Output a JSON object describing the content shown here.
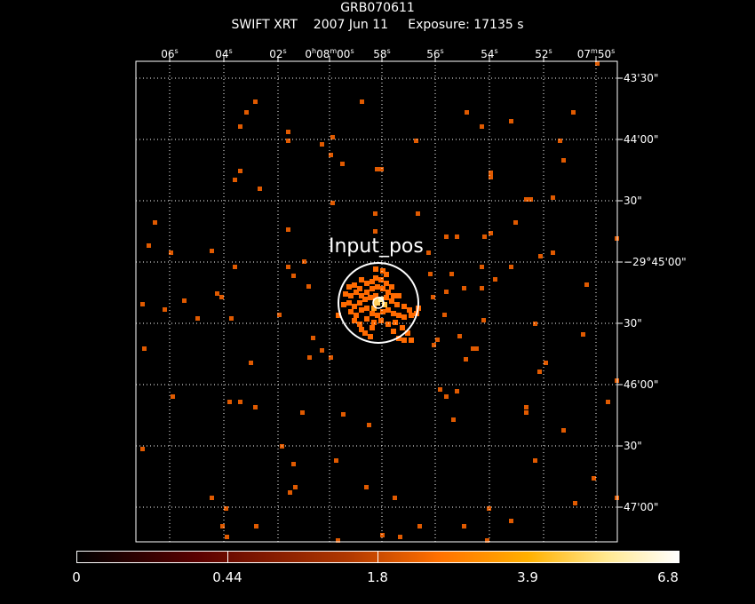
{
  "header": {
    "object": "GRB070611",
    "subtitle": "SWIFT XRT    2007 Jun 11     Exposure: 17135 s"
  },
  "source_label": "Input_pos",
  "ra_labels": [
    "06s",
    "04s",
    "02s",
    "0h08m00s",
    "58s",
    "56s",
    "54s",
    "52s",
    "07m50s"
  ],
  "dec_labels": [
    "43'30\"",
    "44'00\"",
    "30\"",
    "−29°45'00\"",
    "30\"",
    "46'00\"",
    "30\"",
    "47'00\""
  ],
  "colorbar": {
    "labels": [
      "0",
      "0.44",
      "1.8",
      "3.9",
      "6.8"
    ]
  },
  "colors": {
    "pixel": "#ff6a00",
    "pixel_dim": "#e05a00",
    "circle": "#ffffff",
    "grid": "#ffffff"
  }
}
